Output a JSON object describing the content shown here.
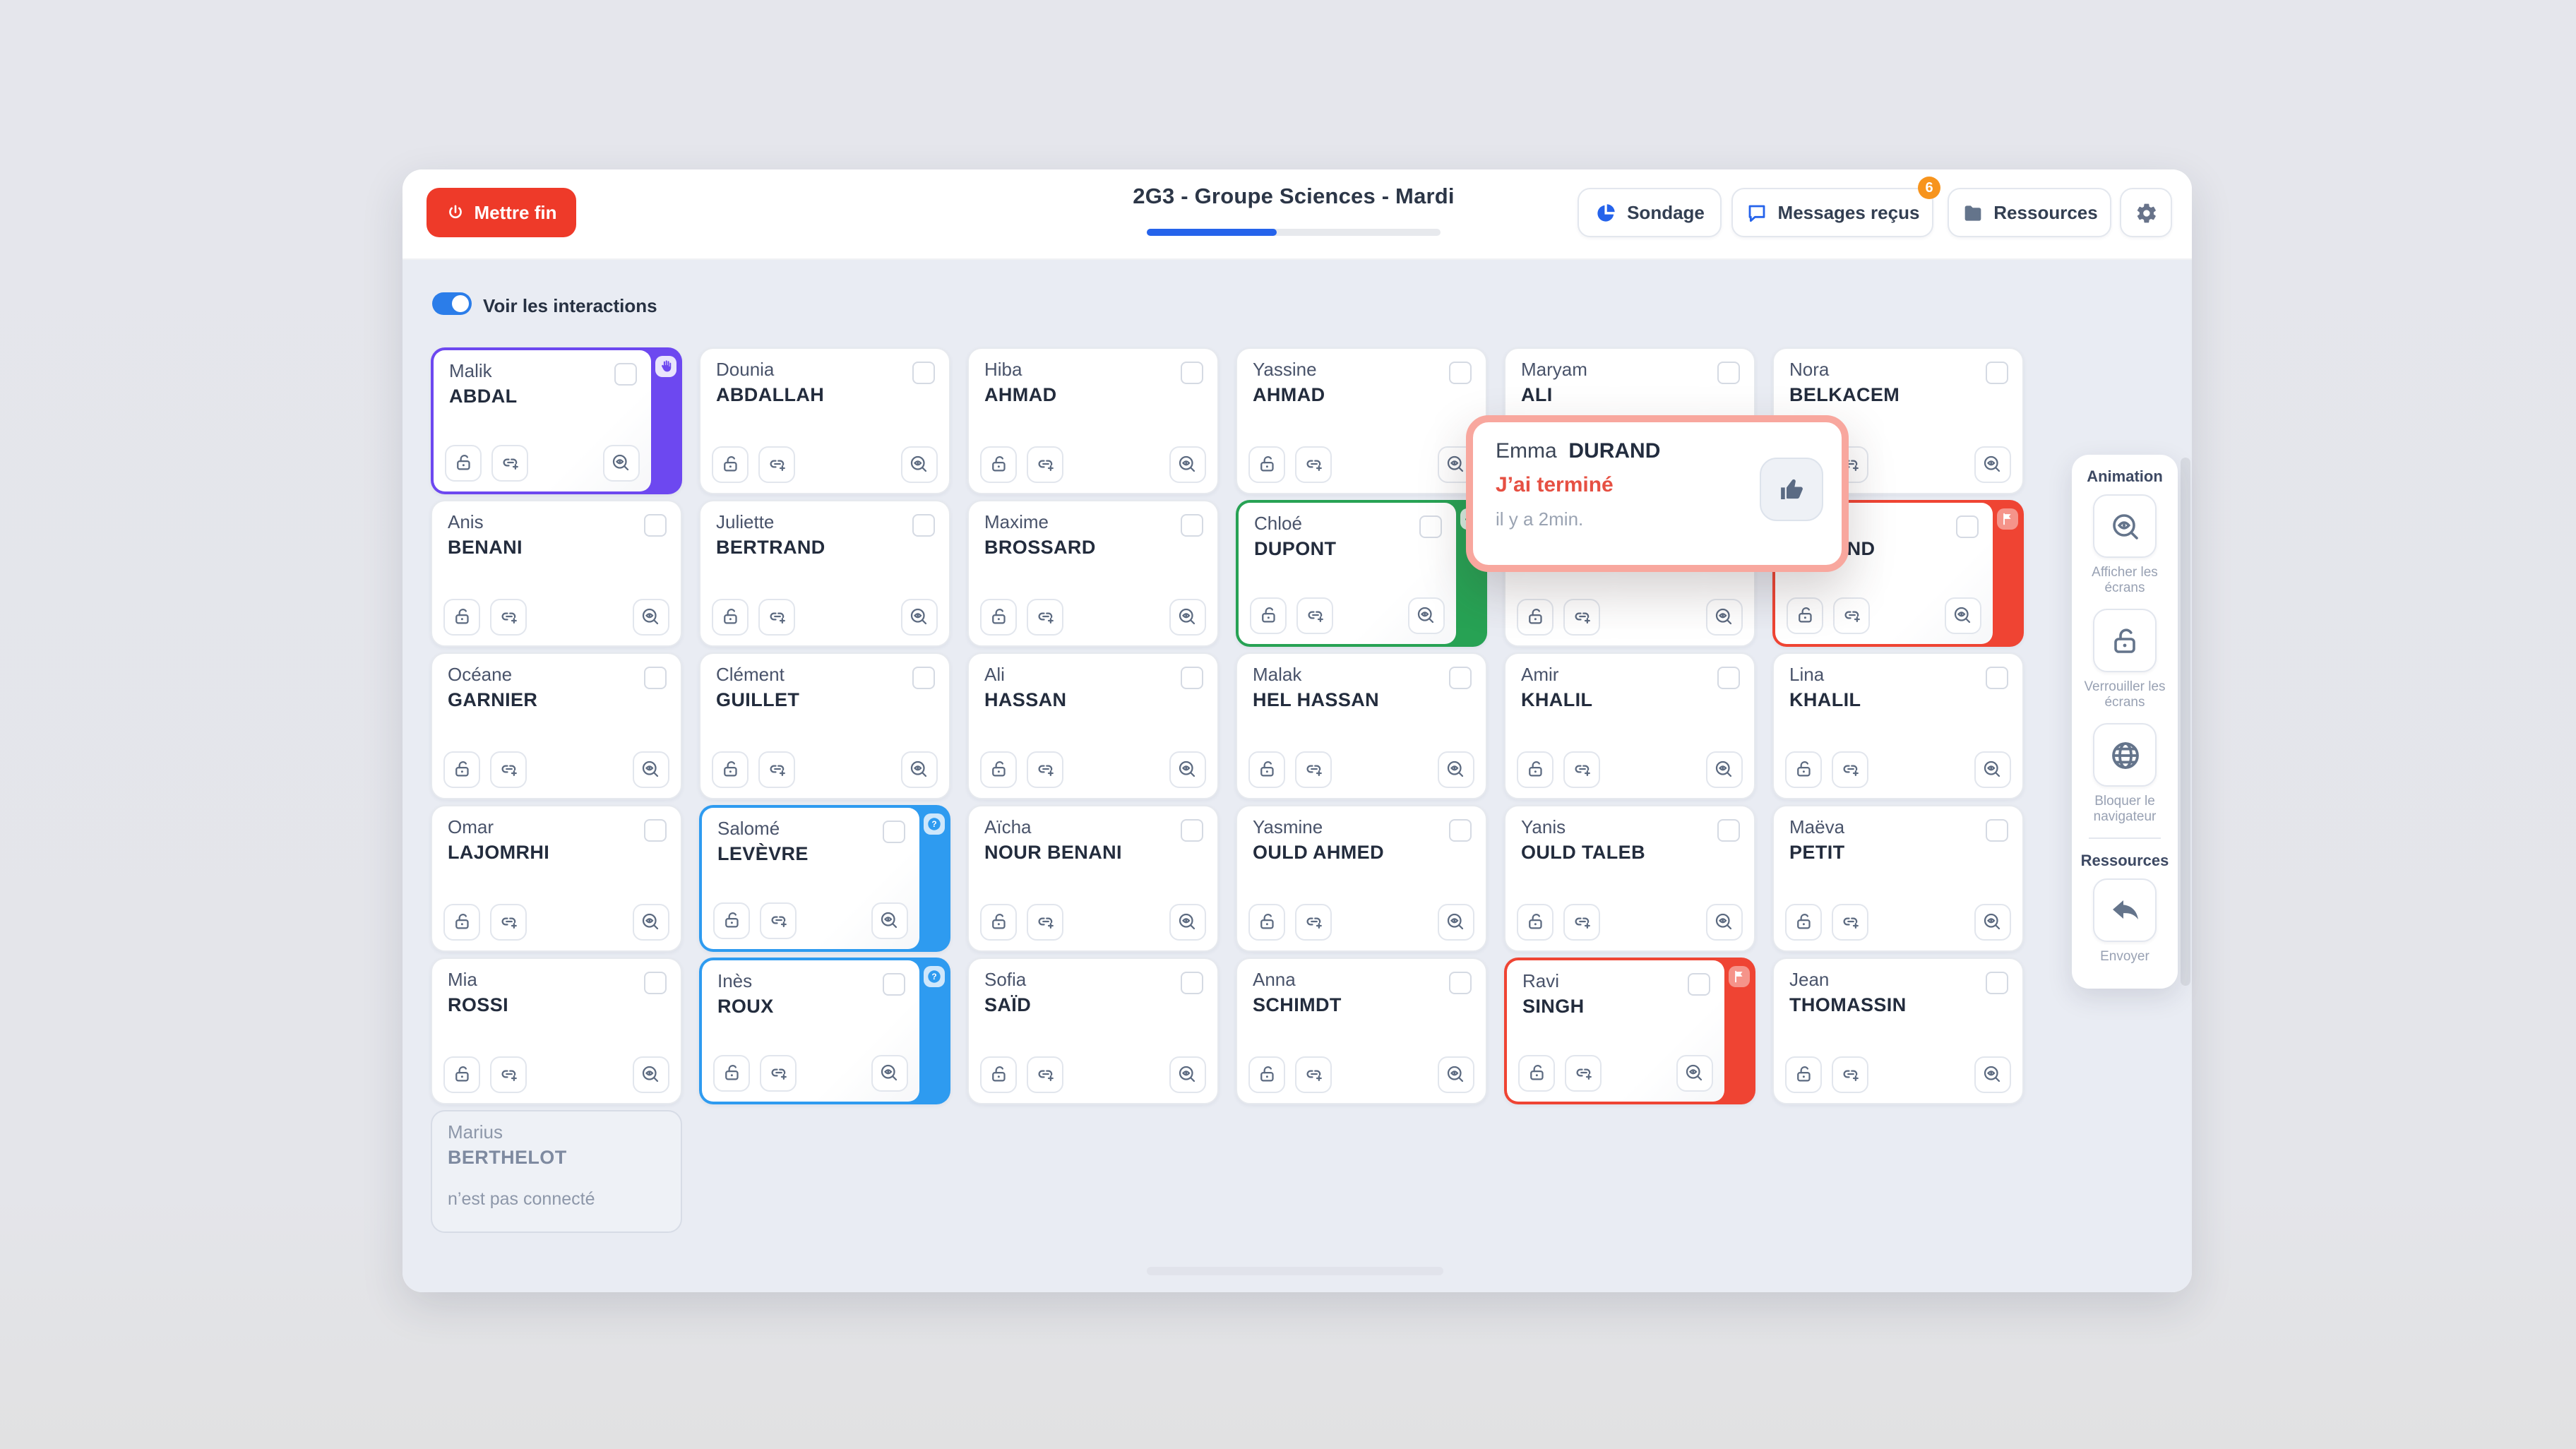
{
  "header": {
    "end_button_label": "Mettre fin",
    "title": "2G3 - Groupe Sciences - Mardi",
    "progress_percent": 44,
    "poll_button_label": "Sondage",
    "messages_button_label": "Messages reçus",
    "messages_badge_count": "6",
    "resources_button_label": "Ressources"
  },
  "toolbar": {
    "toggle_label": "Voir les interactions",
    "toggle_on": true
  },
  "colors": {
    "end_button_red": "#ee3a29",
    "accent_blue": "#2563eb",
    "toggle_blue": "#2b7de9",
    "badge_orange": "#f7941d",
    "status_hand_purple": "#6d48f0",
    "status_check_green": "#27a254",
    "status_question_blue": "#2e9bf0",
    "status_flag_red": "#ef4433",
    "popup_border_salmon": "#f8a79e",
    "popup_message_red": "#e65043"
  },
  "students": [
    {
      "first_name": "Malik",
      "last_name": "ABDAL",
      "status": "hand"
    },
    {
      "first_name": "Dounia",
      "last_name": "ABDALLAH",
      "status": null
    },
    {
      "first_name": "Hiba",
      "last_name": "AHMAD",
      "status": null
    },
    {
      "first_name": "Yassine",
      "last_name": "AHMAD",
      "status": null
    },
    {
      "first_name": "Maryam",
      "last_name": "ALI",
      "status": null
    },
    {
      "first_name": "Nora",
      "last_name": "BELKACEM",
      "status": null
    },
    {
      "first_name": "Anis",
      "last_name": "BENANI",
      "status": null
    },
    {
      "first_name": "Juliette",
      "last_name": "BERTRAND",
      "status": null
    },
    {
      "first_name": "Maxime",
      "last_name": "BROSSARD",
      "status": null
    },
    {
      "first_name": "Chloé",
      "last_name": "DUPONT",
      "status": "check"
    },
    {
      "first_name": "",
      "last_name": "",
      "status": null
    },
    {
      "first_name": "Emma",
      "last_name": "DURAND",
      "status": "flag"
    },
    {
      "first_name": "Océane",
      "last_name": "GARNIER",
      "status": null
    },
    {
      "first_name": "Clément",
      "last_name": "GUILLET",
      "status": null
    },
    {
      "first_name": "Ali",
      "last_name": "HASSAN",
      "status": null
    },
    {
      "first_name": "Malak",
      "last_name": "HEL HASSAN",
      "status": null
    },
    {
      "first_name": "Amir",
      "last_name": "KHALIL",
      "status": null
    },
    {
      "first_name": "Lina",
      "last_name": "KHALIL",
      "status": null
    },
    {
      "first_name": "Omar",
      "last_name": "LAJOMRHI",
      "status": null
    },
    {
      "first_name": "Salomé",
      "last_name": "LEVÈVRE",
      "status": "question"
    },
    {
      "first_name": "Aïcha",
      "last_name": "NOUR BENANI",
      "status": null
    },
    {
      "first_name": "Yasmine",
      "last_name": "OULD AHMED",
      "status": null
    },
    {
      "first_name": "Yanis",
      "last_name": "OULD TALEB",
      "status": null
    },
    {
      "first_name": "Maëva",
      "last_name": "PETIT",
      "status": null
    },
    {
      "first_name": "Mia",
      "last_name": "ROSSI",
      "status": null
    },
    {
      "first_name": "Inès",
      "last_name": "ROUX",
      "status": "question"
    },
    {
      "first_name": "Sofia",
      "last_name": "SAÏD",
      "status": null
    },
    {
      "first_name": "Anna",
      "last_name": "SCHIMDT",
      "status": null
    },
    {
      "first_name": "Ravi",
      "last_name": "SINGH",
      "status": "flag"
    },
    {
      "first_name": "Jean",
      "last_name": "THOMASSIN",
      "status": null
    }
  ],
  "offline_student": {
    "first_name": "Marius",
    "last_name": "BERTHELOT",
    "note": "n’est pas connecté"
  },
  "notification": {
    "first_name": "Emma",
    "last_name": "DURAND",
    "message": "J’ai terminé",
    "time": "il y a 2min.",
    "action_icon": "thumbs-up"
  },
  "sidebar": {
    "sections": [
      {
        "title": "Animation",
        "items": [
          {
            "icon": "screen-view-icon",
            "label": "Afficher les écrans"
          },
          {
            "icon": "lock-icon",
            "label": "Verrouiller les écrans"
          },
          {
            "icon": "globe-icon",
            "label": "Bloquer le navigateur"
          }
        ]
      },
      {
        "title": "Ressources",
        "items": [
          {
            "icon": "send-back-icon",
            "label": "Envoyer"
          }
        ]
      }
    ]
  }
}
